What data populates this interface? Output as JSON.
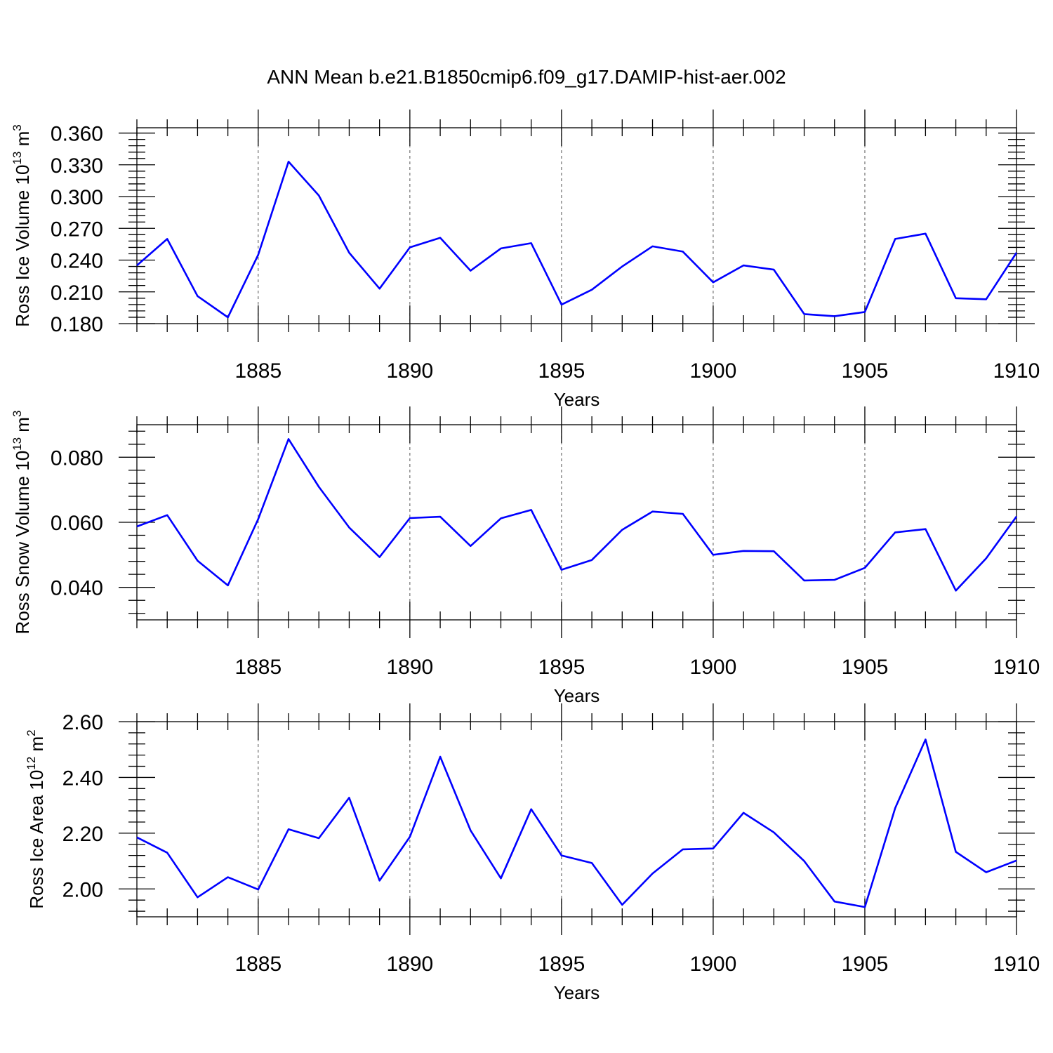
{
  "title": "ANN Mean b.e21.B1850cmip6.f09_g17.DAMIP-hist-aer.002",
  "line_color": "#0000ff",
  "chart_data": [
    {
      "type": "line",
      "xlabel": "Years",
      "ylabel": "Ross Ice Volume 10",
      "ylabel_exp": "13",
      "ylabel_unit": " m",
      "ylabel_unit_exp": "3",
      "xlim": [
        1881,
        1910
      ],
      "ylim": [
        0.18,
        0.365
      ],
      "yticks": [
        0.18,
        0.21,
        0.24,
        0.27,
        0.3,
        0.33,
        0.36
      ],
      "ytick_labels": [
        "0.180",
        "0.210",
        "0.240",
        "0.270",
        "0.300",
        "0.330",
        "0.360"
      ],
      "xticks": [
        1885,
        1890,
        1895,
        1900,
        1905,
        1910
      ],
      "xtick_labels": [
        "1885",
        "1890",
        "1895",
        "1900",
        "1905",
        "1910"
      ],
      "x": [
        1881,
        1882,
        1883,
        1884,
        1885,
        1886,
        1887,
        1888,
        1889,
        1890,
        1891,
        1892,
        1893,
        1894,
        1895,
        1896,
        1897,
        1898,
        1899,
        1900,
        1901,
        1902,
        1903,
        1904,
        1905,
        1906,
        1907,
        1908,
        1909,
        1910
      ],
      "values": [
        0.235,
        0.26,
        0.206,
        0.186,
        0.245,
        0.333,
        0.301,
        0.247,
        0.213,
        0.252,
        0.261,
        0.23,
        0.251,
        0.256,
        0.198,
        0.212,
        0.234,
        0.253,
        0.248,
        0.219,
        0.235,
        0.231,
        0.189,
        0.187,
        0.191,
        0.26,
        0.265,
        0.204,
        0.203,
        0.247
      ]
    },
    {
      "type": "line",
      "xlabel": "Years",
      "ylabel": "Ross Snow Volume 10",
      "ylabel_exp": "13",
      "ylabel_unit": " m",
      "ylabel_unit_exp": "3",
      "xlim": [
        1881,
        1910
      ],
      "ylim": [
        0.03,
        0.09
      ],
      "yticks": [
        0.04,
        0.06,
        0.08
      ],
      "ytick_labels": [
        "0.040",
        "0.060",
        "0.080"
      ],
      "xticks": [
        1885,
        1890,
        1895,
        1900,
        1905,
        1910
      ],
      "xtick_labels": [
        "1885",
        "1890",
        "1895",
        "1900",
        "1905",
        "1910"
      ],
      "x": [
        1881,
        1882,
        1883,
        1884,
        1885,
        1886,
        1887,
        1888,
        1889,
        1890,
        1891,
        1892,
        1893,
        1894,
        1895,
        1896,
        1897,
        1898,
        1899,
        1900,
        1901,
        1902,
        1903,
        1904,
        1905,
        1906,
        1907,
        1908,
        1909,
        1910
      ],
      "values": [
        0.0587,
        0.0622,
        0.0482,
        0.0406,
        0.061,
        0.0856,
        0.0709,
        0.0584,
        0.0493,
        0.0613,
        0.0617,
        0.0527,
        0.0612,
        0.0638,
        0.0454,
        0.0484,
        0.0577,
        0.0633,
        0.0626,
        0.05,
        0.0512,
        0.0511,
        0.0421,
        0.0423,
        0.046,
        0.0569,
        0.0579,
        0.039,
        0.0489,
        0.0618
      ]
    },
    {
      "type": "line",
      "xlabel": "Years",
      "ylabel": "Ross Ice Area 10",
      "ylabel_exp": "12",
      "ylabel_unit": " m",
      "ylabel_unit_exp": "2",
      "xlim": [
        1881,
        1910
      ],
      "ylim": [
        1.9,
        2.6
      ],
      "yticks": [
        2.0,
        2.2,
        2.4,
        2.6
      ],
      "ytick_labels": [
        "2.00",
        "2.20",
        "2.40",
        "2.60"
      ],
      "xticks": [
        1885,
        1890,
        1895,
        1900,
        1905,
        1910
      ],
      "xtick_labels": [
        "1885",
        "1890",
        "1895",
        "1900",
        "1905",
        "1910"
      ],
      "x": [
        1881,
        1882,
        1883,
        1884,
        1885,
        1886,
        1887,
        1888,
        1889,
        1890,
        1891,
        1892,
        1893,
        1894,
        1895,
        1896,
        1897,
        1898,
        1899,
        1900,
        1901,
        1902,
        1903,
        1904,
        1905,
        1906,
        1907,
        1908,
        1909,
        1910
      ],
      "values": [
        2.185,
        2.13,
        1.97,
        2.042,
        1.998,
        2.214,
        2.182,
        2.327,
        2.03,
        2.187,
        2.474,
        2.21,
        2.038,
        2.286,
        2.12,
        2.093,
        1.943,
        2.055,
        2.142,
        2.145,
        2.273,
        2.203,
        2.1,
        1.955,
        1.935,
        2.29,
        2.536,
        2.133,
        2.06,
        2.102
      ]
    }
  ]
}
